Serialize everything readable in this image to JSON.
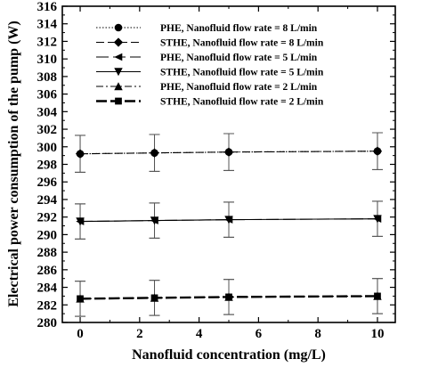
{
  "chart_data": {
    "type": "line",
    "xlabel": "Nanofluid concentration (mg/L)",
    "ylabel": "Electrical power consumption of the pump (W)",
    "xlim": [
      -0.6,
      10.6
    ],
    "ylim": [
      280,
      316
    ],
    "xticks": [
      0,
      2,
      4,
      6,
      8,
      10
    ],
    "yticks": [
      280,
      282,
      284,
      286,
      288,
      290,
      292,
      294,
      296,
      298,
      300,
      302,
      304,
      306,
      308,
      310,
      312,
      314,
      316
    ],
    "grid": false,
    "legend_position": "top-right",
    "x": [
      0,
      2.5,
      5,
      10
    ],
    "series": [
      {
        "name": "PHE, Nanofluid flow rate = 8 L/min",
        "marker": "circle",
        "line_style": "dotted",
        "values": [
          299.2,
          299.3,
          299.4,
          299.5
        ],
        "error": [
          2.1,
          2.1,
          2.1,
          2.1
        ]
      },
      {
        "name": "STHE, Nanofluid flow rate = 8 L/min",
        "marker": "diamond",
        "line_style": "dashed",
        "values": [
          299.2,
          299.3,
          299.4,
          299.5
        ],
        "error": [
          2.1,
          2.1,
          2.1,
          2.1
        ]
      },
      {
        "name": "PHE, Nanofluid flow rate = 5 L/min",
        "marker": "triangle-left",
        "line_style": "long-dash",
        "values": [
          291.5,
          291.6,
          291.7,
          291.8
        ],
        "error": [
          2.0,
          2.0,
          2.0,
          2.0
        ]
      },
      {
        "name": "STHE, Nanofluid flow rate = 5 L/min",
        "marker": "triangle-down",
        "line_style": "solid",
        "values": [
          291.5,
          291.6,
          291.7,
          291.8
        ],
        "error": [
          2.0,
          2.0,
          2.0,
          2.0
        ]
      },
      {
        "name": "PHE, Nanofluid flow rate = 2 L/min",
        "marker": "triangle-up",
        "line_style": "dash-dot",
        "values": [
          282.7,
          282.8,
          282.9,
          283.0
        ],
        "error": [
          2.0,
          2.0,
          2.0,
          2.0
        ]
      },
      {
        "name": "STHE, Nanofluid flow rate = 2 L/min",
        "marker": "square",
        "line_style": "bold-dashed",
        "values": [
          282.7,
          282.8,
          282.9,
          283.0
        ],
        "error": [
          2.0,
          2.0,
          2.0,
          2.0
        ]
      }
    ]
  }
}
